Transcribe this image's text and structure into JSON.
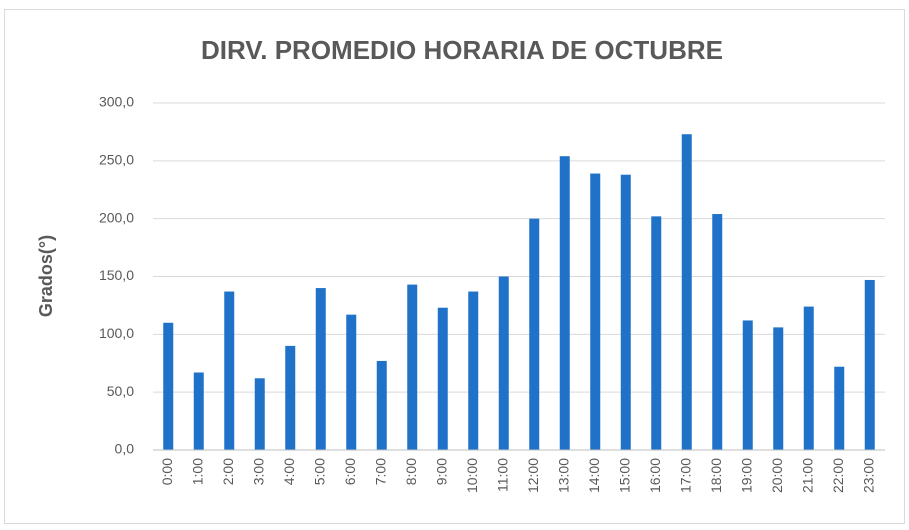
{
  "chart_data": {
    "type": "bar",
    "title": "DIRV. PROMEDIO HORARIA DE OCTUBRE",
    "y_label": "Grados(°)",
    "categories": [
      "0:00",
      "1:00",
      "2:00",
      "3:00",
      "4:00",
      "5:00",
      "6:00",
      "7:00",
      "8:00",
      "9:00",
      "10:00",
      "11:00",
      "12:00",
      "13:00",
      "14:00",
      "15:00",
      "16:00",
      "17:00",
      "18:00",
      "19:00",
      "20:00",
      "21:00",
      "22:00",
      "23:00"
    ],
    "values": [
      110,
      67,
      137,
      62,
      90,
      140,
      117,
      77,
      143,
      123,
      137,
      150,
      200,
      254,
      239,
      238,
      202,
      273,
      204,
      112,
      106,
      124,
      72,
      147
    ],
    "color": "#1f72c8",
    "ylim": [
      0,
      300
    ],
    "yticks": [
      {
        "value": 0,
        "label": "0,0"
      },
      {
        "value": 50,
        "label": "50,0"
      },
      {
        "value": 100,
        "label": "100,0"
      },
      {
        "value": 150,
        "label": "150,0"
      },
      {
        "value": 200,
        "label": "200,0"
      },
      {
        "value": 250,
        "label": "250,0"
      },
      {
        "value": 300,
        "label": "300,0"
      }
    ],
    "grid": true
  }
}
